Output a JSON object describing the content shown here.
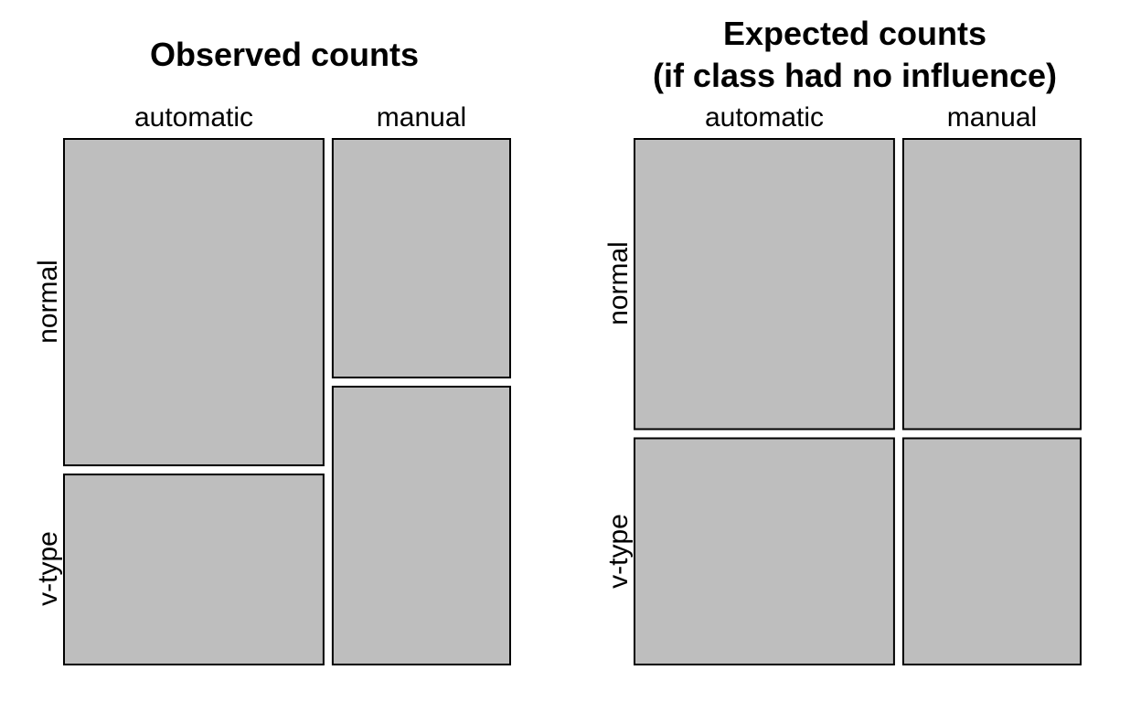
{
  "chart_data": [
    {
      "type": "mosaic",
      "title": "Observed counts",
      "column_variable_levels": [
        "automatic",
        "manual"
      ],
      "row_variable_levels": [
        "normal",
        "v-type"
      ],
      "column_proportions": [
        0.594,
        0.406
      ],
      "row_proportions_within_column": [
        [
          0.632,
          0.368
        ],
        [
          0.462,
          0.538
        ]
      ],
      "fill_color": "#bebebe"
    },
    {
      "type": "mosaic",
      "title": "Expected counts\n(if class had no influence)",
      "title_lines": [
        "Expected counts",
        "(if class had no influence)"
      ],
      "column_variable_levels": [
        "automatic",
        "manual"
      ],
      "row_variable_levels": [
        "normal",
        "v-type"
      ],
      "column_proportions": [
        0.594,
        0.406
      ],
      "row_proportions_within_column": [
        [
          0.562,
          0.438
        ],
        [
          0.562,
          0.438
        ]
      ],
      "fill_color": "#bebebe"
    }
  ]
}
